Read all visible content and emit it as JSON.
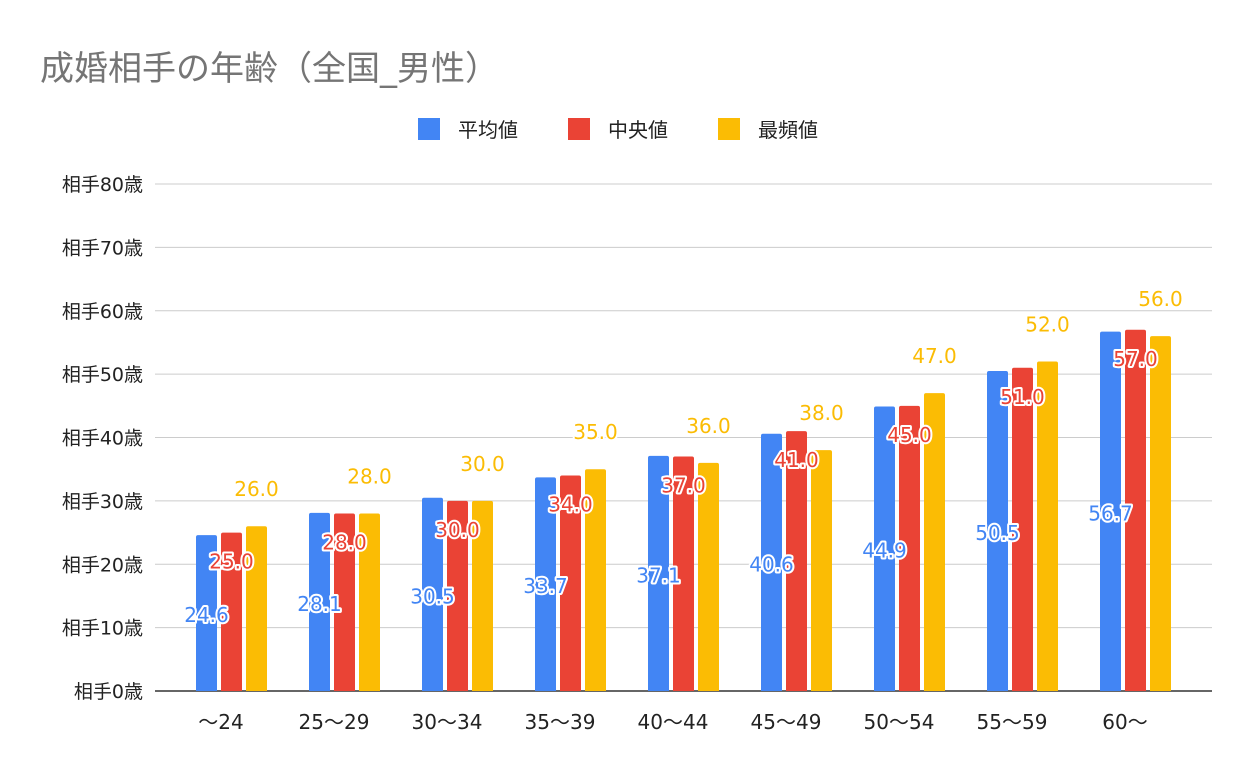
{
  "chart_data": {
    "type": "bar",
    "title": "成婚相手の年齢（全国_男性）",
    "xlabel": "",
    "ylabel": "",
    "ylim": [
      0,
      80
    ],
    "grid": true,
    "legend_position": "top",
    "y_ticks": [
      0,
      10,
      20,
      30,
      40,
      50,
      60,
      70,
      80
    ],
    "y_tick_labels": [
      "相手0歳",
      "相手10歳",
      "相手20歳",
      "相手30歳",
      "相手40歳",
      "相手50歳",
      "相手60歳",
      "相手70歳",
      "相手80歳"
    ],
    "categories": [
      "〜24",
      "25〜29",
      "30〜34",
      "35〜39",
      "40〜44",
      "45〜49",
      "50〜54",
      "55〜59",
      "60〜"
    ],
    "series": [
      {
        "name": "平均値",
        "color": "#4285F4",
        "values": [
          24.6,
          28.1,
          30.5,
          33.7,
          37.1,
          40.6,
          44.9,
          50.5,
          56.7
        ]
      },
      {
        "name": "中央値",
        "color": "#EA4335",
        "values": [
          25.0,
          28.0,
          30.0,
          34.0,
          37.0,
          41.0,
          45.0,
          51.0,
          57.0
        ]
      },
      {
        "name": "最頻値",
        "color": "#FBBC04",
        "values": [
          26.0,
          28.0,
          30.0,
          35.0,
          36.0,
          38.0,
          47.0,
          52.0,
          56.0
        ]
      }
    ]
  }
}
